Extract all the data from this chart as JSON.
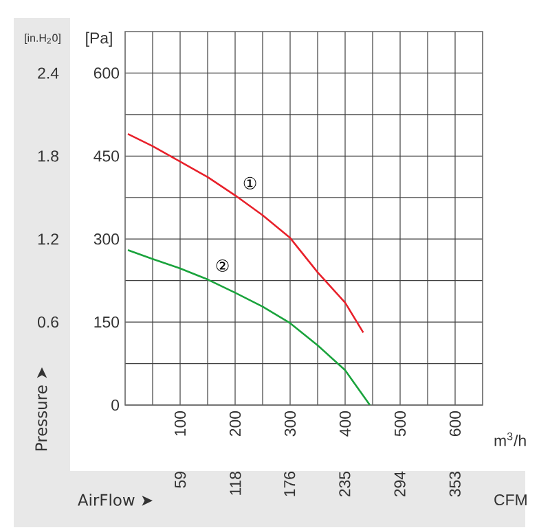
{
  "chart_data": {
    "type": "line",
    "ylabel": "[Pa]",
    "y2label": "[in.H$_{2}$0]",
    "xlabel": "m$^{3}$/h",
    "x2label": "CFM",
    "xlim": [
      0,
      650
    ],
    "ylim": [
      0,
      675
    ],
    "y2lim": [
      0,
      2.7
    ],
    "x2lim": [
      0,
      382.6
    ],
    "xticks": [
      {
        "value": 50,
        "label": null
      },
      100,
      {
        "value": 150,
        "label": null
      },
      200,
      {
        "value": 250,
        "label": null
      },
      300,
      {
        "value": 350,
        "label": null
      },
      400,
      {
        "value": 450,
        "label": null
      },
      500,
      {
        "value": 550,
        "label": null
      },
      600
    ],
    "yticks": [
      0,
      {
        "value": 75,
        "label": null
      },
      150,
      {
        "value": 225,
        "label": null
      },
      300,
      {
        "value": 375,
        "label": null
      },
      450,
      {
        "value": 525,
        "label": null
      },
      600
    ],
    "y2ticks": [
      0.6,
      1.2,
      1.8,
      2.4
    ],
    "x2ticks": [
      59,
      118,
      176,
      235,
      294,
      353
    ],
    "grid": true,
    "marker": "none",
    "line_style": "solid",
    "series": [
      {
        "color": "#e8202a",
        "x": [
          5,
          50,
          100,
          150,
          200,
          250,
          300,
          350,
          400,
          433
        ],
        "values": [
          490,
          468,
          440,
          412,
          379,
          343,
          302,
          240,
          185,
          131
        ]
      },
      {
        "color": "#1aa33c",
        "x": [
          5,
          50,
          100,
          150,
          200,
          250,
          300,
          350,
          400,
          445
        ],
        "values": [
          280,
          264,
          247,
          227,
          203,
          178,
          148,
          108,
          63,
          0
        ]
      }
    ],
    "annotations": [
      {
        "text": "①",
        "x": 227,
        "y": 401
      },
      {
        "text": "②",
        "x": 177,
        "y": 252
      },
      "Pressure ➤",
      "AirFlow ➤"
    ]
  }
}
